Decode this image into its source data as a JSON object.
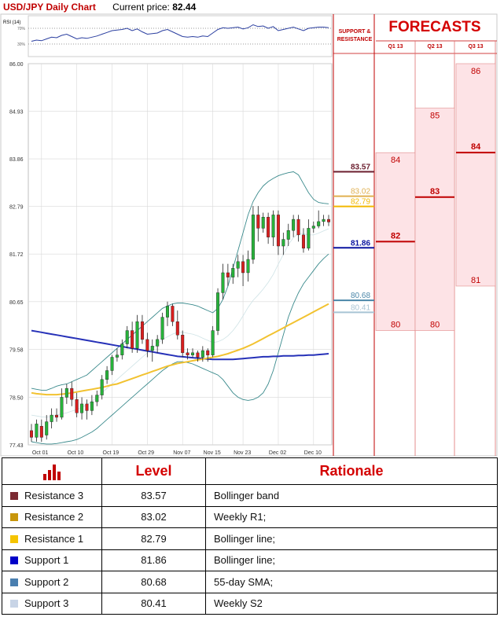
{
  "header": {
    "title": "USD/JPY Daily Chart",
    "price_label": "Current price:",
    "price_value": "82.44"
  },
  "rsi": {
    "label": "RSI (14)",
    "upper": "70%",
    "lower": "30%"
  },
  "chart_data": {
    "type": "candlestick",
    "y_ticks": [
      "86.00",
      "84.93",
      "83.86",
      "82.79",
      "81.72",
      "80.65",
      "79.58",
      "78.50",
      "77.43"
    ],
    "ylim": [
      77.43,
      86.0
    ],
    "x_ticks": [
      "Oct 01",
      "Oct 10",
      "Oct 19",
      "Oct 29",
      "Nov 07",
      "Nov 15",
      "Nov 23",
      "Dec 02",
      "Dec 10"
    ],
    "candles": [
      {
        "o": 77.75,
        "c": 77.6,
        "h": 77.9,
        "l": 77.5
      },
      {
        "o": 77.6,
        "c": 77.9,
        "h": 78.0,
        "l": 77.5
      },
      {
        "o": 77.85,
        "c": 77.6,
        "h": 78.0,
        "l": 77.5
      },
      {
        "o": 77.65,
        "c": 77.95,
        "h": 78.1,
        "l": 77.55
      },
      {
        "o": 77.95,
        "c": 78.1,
        "h": 78.25,
        "l": 77.8
      },
      {
        "o": 78.1,
        "c": 78.05,
        "h": 78.25,
        "l": 77.95
      },
      {
        "o": 78.05,
        "c": 78.5,
        "h": 78.7,
        "l": 78.0
      },
      {
        "o": 78.5,
        "c": 78.7,
        "h": 78.8,
        "l": 78.35
      },
      {
        "o": 78.7,
        "c": 78.45,
        "h": 78.85,
        "l": 78.3
      },
      {
        "o": 78.45,
        "c": 78.15,
        "h": 78.6,
        "l": 78.05
      },
      {
        "o": 78.15,
        "c": 78.35,
        "h": 78.5,
        "l": 78.0
      },
      {
        "o": 78.35,
        "c": 78.2,
        "h": 78.45,
        "l": 78.0
      },
      {
        "o": 78.2,
        "c": 78.4,
        "h": 78.55,
        "l": 78.1
      },
      {
        "o": 78.4,
        "c": 78.55,
        "h": 78.65,
        "l": 78.3
      },
      {
        "o": 78.55,
        "c": 78.9,
        "h": 79.0,
        "l": 78.45
      },
      {
        "o": 78.9,
        "c": 79.1,
        "h": 79.2,
        "l": 78.8
      },
      {
        "o": 79.1,
        "c": 79.4,
        "h": 79.45,
        "l": 79.0
      },
      {
        "o": 79.4,
        "c": 79.45,
        "h": 79.6,
        "l": 79.3
      },
      {
        "o": 79.45,
        "c": 79.7,
        "h": 79.8,
        "l": 79.35
      },
      {
        "o": 79.7,
        "c": 80.0,
        "h": 80.1,
        "l": 79.6
      },
      {
        "o": 80.0,
        "c": 79.6,
        "h": 80.2,
        "l": 79.5
      },
      {
        "o": 79.6,
        "c": 80.2,
        "h": 80.35,
        "l": 79.5
      },
      {
        "o": 80.2,
        "c": 79.8,
        "h": 80.35,
        "l": 79.7
      },
      {
        "o": 79.8,
        "c": 79.55,
        "h": 79.95,
        "l": 79.4
      },
      {
        "o": 79.55,
        "c": 79.65,
        "h": 79.8,
        "l": 79.3
      },
      {
        "o": 79.65,
        "c": 79.8,
        "h": 79.9,
        "l": 79.5
      },
      {
        "o": 79.8,
        "c": 80.3,
        "h": 80.4,
        "l": 79.7
      },
      {
        "o": 80.3,
        "c": 80.55,
        "h": 80.65,
        "l": 80.1
      },
      {
        "o": 80.55,
        "c": 80.2,
        "h": 80.6,
        "l": 80.1
      },
      {
        "o": 80.2,
        "c": 79.9,
        "h": 80.45,
        "l": 79.8
      },
      {
        "o": 79.9,
        "c": 79.5,
        "h": 80.0,
        "l": 79.4
      },
      {
        "o": 79.5,
        "c": 79.45,
        "h": 79.6,
        "l": 79.35
      },
      {
        "o": 79.45,
        "c": 79.5,
        "h": 79.6,
        "l": 79.4
      },
      {
        "o": 79.5,
        "c": 79.4,
        "h": 79.55,
        "l": 79.3
      },
      {
        "o": 79.4,
        "c": 79.55,
        "h": 79.65,
        "l": 79.3
      },
      {
        "o": 79.55,
        "c": 79.45,
        "h": 79.6,
        "l": 79.3
      },
      {
        "o": 79.45,
        "c": 80.0,
        "h": 80.1,
        "l": 79.4
      },
      {
        "o": 80.0,
        "c": 80.85,
        "h": 80.95,
        "l": 79.9
      },
      {
        "o": 80.85,
        "c": 81.3,
        "h": 81.5,
        "l": 80.7
      },
      {
        "o": 81.3,
        "c": 81.2,
        "h": 81.5,
        "l": 81.0
      },
      {
        "o": 81.2,
        "c": 81.4,
        "h": 81.5,
        "l": 81.05
      },
      {
        "o": 81.4,
        "c": 81.55,
        "h": 81.7,
        "l": 81.2
      },
      {
        "o": 81.55,
        "c": 81.3,
        "h": 81.7,
        "l": 81.0
      },
      {
        "o": 81.3,
        "c": 81.6,
        "h": 81.8,
        "l": 81.1
      },
      {
        "o": 81.6,
        "c": 82.6,
        "h": 82.8,
        "l": 81.5
      },
      {
        "o": 82.6,
        "c": 82.3,
        "h": 82.8,
        "l": 82.0
      },
      {
        "o": 82.3,
        "c": 82.55,
        "h": 82.65,
        "l": 82.2
      },
      {
        "o": 82.55,
        "c": 82.1,
        "h": 82.65,
        "l": 81.95
      },
      {
        "o": 82.1,
        "c": 82.6,
        "h": 82.7,
        "l": 81.9
      },
      {
        "o": 82.6,
        "c": 81.9,
        "h": 82.7,
        "l": 81.7
      },
      {
        "o": 81.9,
        "c": 82.05,
        "h": 82.2,
        "l": 81.7
      },
      {
        "o": 82.05,
        "c": 82.25,
        "h": 82.4,
        "l": 81.9
      },
      {
        "o": 82.25,
        "c": 82.5,
        "h": 82.6,
        "l": 82.1
      },
      {
        "o": 82.5,
        "c": 82.15,
        "h": 82.6,
        "l": 82.0
      },
      {
        "o": 82.15,
        "c": 81.85,
        "h": 82.3,
        "l": 81.75
      },
      {
        "o": 81.85,
        "c": 82.3,
        "h": 82.5,
        "l": 81.8
      },
      {
        "o": 82.3,
        "c": 82.35,
        "h": 82.45,
        "l": 82.2
      },
      {
        "o": 82.35,
        "c": 82.45,
        "h": 82.7,
        "l": 82.3
      },
      {
        "o": 82.45,
        "c": 82.5,
        "h": 82.6,
        "l": 82.35
      },
      {
        "o": 82.5,
        "c": 82.44,
        "h": 82.6,
        "l": 82.35
      }
    ],
    "lines": {
      "sma55": [
        78.6,
        78.58,
        78.57,
        78.56,
        78.56,
        78.56,
        78.57,
        78.58,
        78.6,
        78.62,
        78.64,
        78.66,
        78.68,
        78.7,
        78.72,
        78.75,
        78.78,
        78.8,
        78.84,
        78.88,
        78.92,
        78.96,
        79.0,
        79.04,
        79.08,
        79.12,
        79.16,
        79.2,
        79.23,
        79.26,
        79.28,
        79.3,
        79.32,
        79.34,
        79.36,
        79.38,
        79.4,
        79.42,
        79.45,
        79.48,
        79.52,
        79.56,
        79.6,
        79.65,
        79.7,
        79.76,
        79.82,
        79.88,
        79.94,
        80.0,
        80.06,
        80.12,
        80.18,
        80.24,
        80.3,
        80.36,
        80.42,
        80.48,
        80.54,
        80.6
      ],
      "sma200": [
        80.0,
        79.98,
        79.96,
        79.94,
        79.92,
        79.9,
        79.88,
        79.86,
        79.84,
        79.82,
        79.8,
        79.78,
        79.76,
        79.74,
        79.72,
        79.7,
        79.68,
        79.66,
        79.64,
        79.62,
        79.6,
        79.58,
        79.56,
        79.54,
        79.52,
        79.5,
        79.48,
        79.46,
        79.44,
        79.42,
        79.41,
        79.4,
        79.39,
        79.38,
        79.37,
        79.36,
        79.35,
        79.35,
        79.35,
        79.35,
        79.35,
        79.36,
        79.37,
        79.38,
        79.39,
        79.4,
        79.41,
        79.41,
        79.42,
        79.42,
        79.43,
        79.43,
        79.43,
        79.44,
        79.44,
        79.45,
        79.45,
        79.46,
        79.47,
        79.48
      ],
      "bb_upper": [
        78.7,
        78.68,
        78.66,
        78.66,
        78.7,
        78.75,
        78.78,
        78.8,
        78.85,
        78.9,
        78.95,
        79.0,
        79.1,
        79.2,
        79.3,
        79.4,
        79.5,
        79.6,
        79.7,
        79.8,
        79.9,
        80.0,
        80.1,
        80.2,
        80.3,
        80.4,
        80.5,
        80.55,
        80.6,
        80.62,
        80.62,
        80.6,
        80.58,
        80.55,
        80.5,
        80.45,
        80.4,
        80.5,
        80.7,
        81.0,
        81.4,
        81.8,
        82.2,
        82.6,
        82.9,
        83.1,
        83.25,
        83.35,
        83.42,
        83.48,
        83.52,
        83.55,
        83.57,
        83.5,
        83.3,
        83.1,
        82.95,
        82.88,
        82.86,
        82.85
      ],
      "bb_lower": [
        77.5,
        77.48,
        77.46,
        77.45,
        77.45,
        77.46,
        77.48,
        77.5,
        77.52,
        77.55,
        77.6,
        77.66,
        77.72,
        77.8,
        77.9,
        78.0,
        78.1,
        78.2,
        78.3,
        78.4,
        78.5,
        78.6,
        78.7,
        78.8,
        78.9,
        79.0,
        79.1,
        79.18,
        79.25,
        79.3,
        79.3,
        79.28,
        79.25,
        79.2,
        79.15,
        79.1,
        79.05,
        79.0,
        78.9,
        78.75,
        78.6,
        78.5,
        78.45,
        78.43,
        78.45,
        78.5,
        78.6,
        78.8,
        79.1,
        79.5,
        79.9,
        80.3,
        80.6,
        80.85,
        81.05,
        81.2,
        81.35,
        81.5,
        81.62,
        81.72
      ],
      "bb_mid": [
        78.1,
        78.08,
        78.06,
        78.05,
        78.07,
        78.1,
        78.13,
        78.15,
        78.19,
        78.22,
        78.28,
        78.33,
        78.41,
        78.5,
        78.6,
        78.7,
        78.8,
        78.9,
        79.0,
        79.1,
        79.2,
        79.3,
        79.4,
        79.5,
        79.6,
        79.7,
        79.8,
        79.86,
        79.92,
        79.96,
        79.96,
        79.94,
        79.92,
        79.88,
        79.83,
        79.78,
        79.73,
        79.75,
        79.8,
        79.88,
        80.0,
        80.15,
        80.33,
        80.52,
        80.68,
        80.8,
        80.93,
        81.08,
        81.26,
        81.49,
        81.71,
        81.93,
        82.09,
        82.18,
        82.18,
        82.15,
        82.15,
        82.19,
        82.24,
        82.29
      ]
    },
    "levels": [
      {
        "value": "83.57",
        "y": 83.57,
        "color": "#6b1e2e"
      },
      {
        "value": "83.02",
        "y": 83.02,
        "color": "#e0b050"
      },
      {
        "value": "82.79",
        "y": 82.79,
        "color": "#f2b800"
      },
      {
        "value": "81.86",
        "y": 81.86,
        "color": "#0a14a0"
      },
      {
        "value": "80.68",
        "y": 80.68,
        "color": "#4a86a8"
      },
      {
        "value": "80.41",
        "y": 80.41,
        "color": "#a8c4d4"
      }
    ],
    "rsi_values": [
      48,
      50,
      49,
      52,
      55,
      54,
      58,
      60,
      56,
      52,
      54,
      53,
      55,
      57,
      60,
      63,
      66,
      67,
      68,
      70,
      66,
      69,
      64,
      60,
      61,
      62,
      66,
      68,
      64,
      60,
      56,
      55,
      56,
      55,
      57,
      56,
      62,
      68,
      71,
      70,
      71,
      72,
      69,
      71,
      76,
      73,
      74,
      70,
      73,
      66,
      68,
      70,
      72,
      69,
      66,
      70,
      71,
      72,
      72,
      71
    ]
  },
  "forecasts": {
    "sr_title_line1": "SUPPORT &",
    "sr_title_line2": "RESISTANCE",
    "title": "FORECASTS",
    "quarters": [
      "Q1 13",
      "Q2 13",
      "Q3 13"
    ],
    "ranges": [
      {
        "high": "84",
        "median": "82",
        "low": "80",
        "hi": 84,
        "med": 82,
        "lo": 80
      },
      {
        "high": "85",
        "median": "83",
        "low": "80",
        "hi": 85,
        "med": 83,
        "lo": 80
      },
      {
        "high": "86",
        "median": "84",
        "low": "81",
        "hi": 86,
        "med": 84,
        "lo": 81
      }
    ]
  },
  "table": {
    "headers": [
      "",
      "Level",
      "Rationale"
    ],
    "rows": [
      {
        "name": "Resistance 3",
        "level": "83.57",
        "rationale": "Bollinger band",
        "color": "#7b2a32"
      },
      {
        "name": "Resistance 2",
        "level": "83.02",
        "rationale": "Weekly R1;",
        "color": "#c8960c"
      },
      {
        "name": "Resistance 1",
        "level": "82.79",
        "rationale": "Bollinger line;",
        "color": "#f5c400"
      },
      {
        "name": "Support 1",
        "level": "81.86",
        "rationale": "Bollinger line;",
        "color": "#0000c8"
      },
      {
        "name": "Support 2",
        "level": "80.68",
        "rationale": "55-day SMA;",
        "color": "#4a7fb0"
      },
      {
        "name": "Support 3",
        "level": "80.41",
        "rationale": "Weekly S2",
        "color": "#c8d4e6"
      }
    ]
  }
}
